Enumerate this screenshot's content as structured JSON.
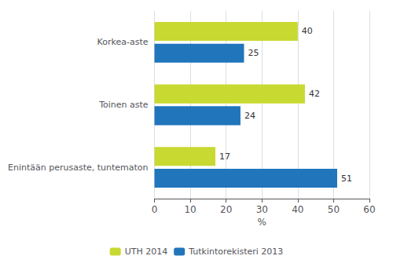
{
  "chart_data": {
    "type": "bar",
    "orientation": "horizontal",
    "categories": [
      "Korkea-aste",
      "Toinen aste",
      "Enintään perusaste, tuntematon"
    ],
    "series": [
      {
        "name": "UTH 2014",
        "color": "#c8d932",
        "values": [
          40,
          42,
          17
        ]
      },
      {
        "name": "Tutkintorekisteri 2013",
        "color": "#2075bb",
        "values": [
          25,
          24,
          51
        ]
      }
    ],
    "xlabel": "%",
    "xlim": [
      0,
      60
    ],
    "xticks": [
      0,
      10,
      20,
      30,
      40,
      50,
      60
    ],
    "grid": true,
    "data_labels": true,
    "legend": "bottom"
  }
}
